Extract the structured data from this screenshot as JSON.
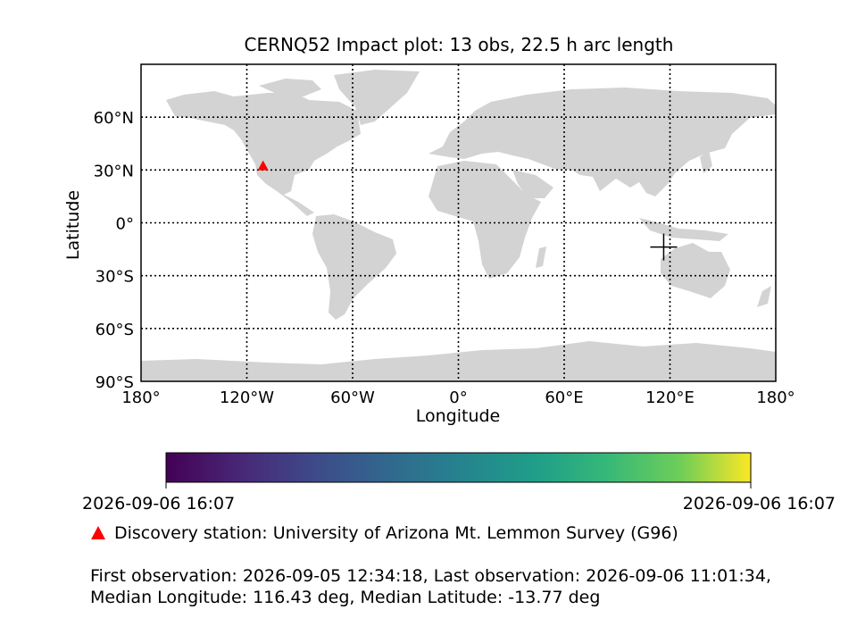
{
  "title": "CERNQ52 Impact plot: 13 obs, 22.5 h arc length",
  "map": {
    "xlabel": "Longitude",
    "ylabel": "Latitude",
    "x_range": [
      -180,
      180
    ],
    "y_range": [
      -90,
      90
    ],
    "x_ticks": [
      {
        "value": -180,
        "label": "180°"
      },
      {
        "value": -120,
        "label": "120°W"
      },
      {
        "value": -60,
        "label": "60°W"
      },
      {
        "value": 0,
        "label": "0°"
      },
      {
        "value": 60,
        "label": "60°E"
      },
      {
        "value": 120,
        "label": "120°E"
      },
      {
        "value": 180,
        "label": "180°"
      }
    ],
    "y_ticks": [
      {
        "value": 60,
        "label": "60°N"
      },
      {
        "value": 30,
        "label": "30°N"
      },
      {
        "value": 0,
        "label": "0°"
      },
      {
        "value": -30,
        "label": "30°S"
      },
      {
        "value": -60,
        "label": "60°S"
      },
      {
        "value": -90,
        "label": "90°S"
      }
    ],
    "grid": true,
    "land_color": "#d3d3d3",
    "station": {
      "lon": -110.8,
      "lat": 32.4,
      "color": "#ff0000"
    },
    "impact": {
      "lon": 116.43,
      "lat": -13.77,
      "color": "#000000"
    }
  },
  "colorbar": {
    "colormap": "viridis",
    "left_label": "2026-09-06 16:07",
    "right_label": "2026-09-06 16:07"
  },
  "legend": {
    "station_label": "Discovery station: University of Arizona Mt. Lemmon Survey (G96)"
  },
  "info": {
    "line1": "First observation: 2026-09-05 12:34:18, Last observation: 2026-09-06 11:01:34,",
    "line2": "Median Longitude: 116.43 deg, Median Latitude: -13.77 deg"
  }
}
